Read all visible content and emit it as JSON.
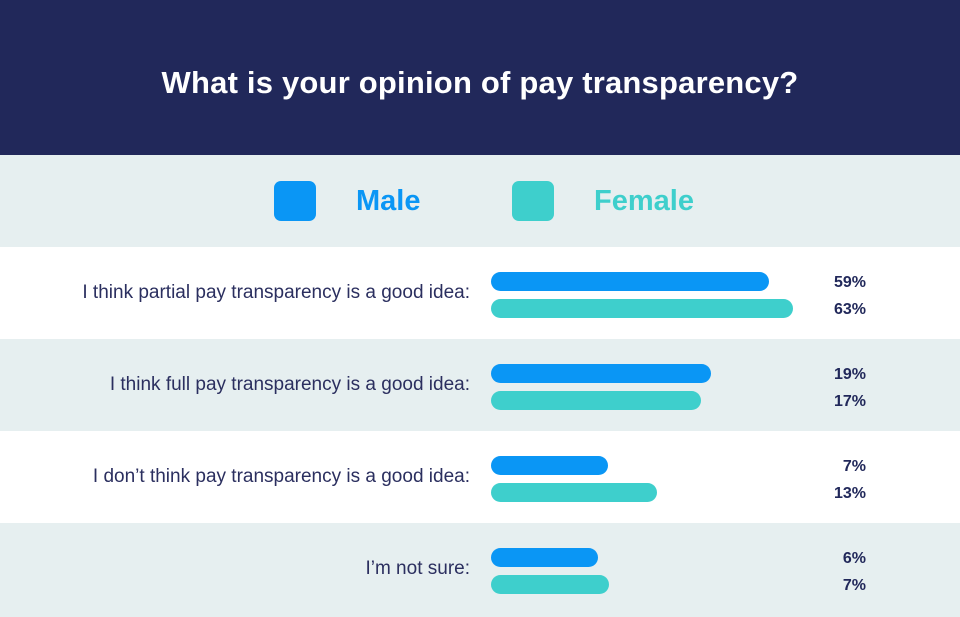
{
  "title": "What is your opinion of pay transparency?",
  "legend": [
    {
      "label": "Male",
      "color": "#0a96f5"
    },
    {
      "label": "Female",
      "color": "#3ecfcc"
    }
  ],
  "chart_data": {
    "type": "bar",
    "orientation": "horizontal",
    "title": "What is your opinion of pay transparency?",
    "categories": [
      "I think partial pay transparency is a good idea:",
      "I think full pay transparency is a good idea:",
      "I don’t think pay transparency is a good idea:",
      "I’m not sure:"
    ],
    "series": [
      {
        "name": "Male",
        "color": "#0a96f5",
        "values": [
          59,
          19,
          7,
          6
        ],
        "labels": [
          "59%",
          "19%",
          "7%",
          "6%"
        ],
        "bar_lengths": [
          0.919,
          0.73,
          0.389,
          0.355
        ]
      },
      {
        "name": "Female",
        "color": "#3ecfcc",
        "values": [
          63,
          17,
          13,
          7
        ],
        "labels": [
          "63%",
          "17%",
          "13%",
          "7%"
        ],
        "bar_lengths": [
          1.0,
          0.697,
          0.551,
          0.392
        ]
      }
    ],
    "legend_position": "top",
    "grid": false
  }
}
